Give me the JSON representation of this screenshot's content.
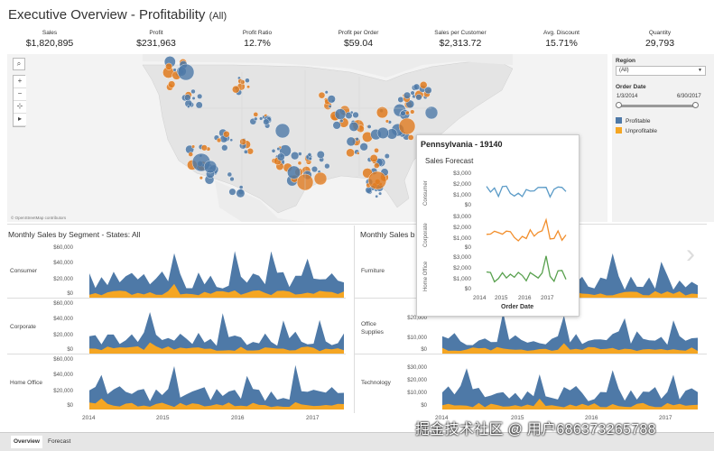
{
  "header": {
    "title": "Executive Overview - Profitability",
    "title_suffix": "(All)"
  },
  "kpis": [
    {
      "label": "Sales",
      "value": "$1,820,895"
    },
    {
      "label": "Profit",
      "value": "$231,963"
    },
    {
      "label": "Profit Ratio",
      "value": "12.7%"
    },
    {
      "label": "Profit per Order",
      "value": "$59.04"
    },
    {
      "label": "Sales per Customer",
      "value": "$2,313.72"
    },
    {
      "label": "Avg. Discount",
      "value": "15.71%"
    },
    {
      "label": "Quantity",
      "value": "29,793"
    }
  ],
  "map": {
    "attribution": "© OpenStreetMap contributors",
    "tools": {
      "search": "⌕",
      "zoom_in": "+",
      "zoom_out": "−",
      "pin": "⊹",
      "play": "▸"
    }
  },
  "filters": {
    "region_label": "Region",
    "region_value": "(All)",
    "order_date_label": "Order Date",
    "date_start": "1/3/2014",
    "date_end": "6/30/2017",
    "legend": [
      {
        "label": "Profitable",
        "color": "#4e79a7"
      },
      {
        "label": "Unprofitable",
        "color": "#f5a623"
      }
    ]
  },
  "left_panel": {
    "title": "Monthly Sales by Segment - States: All",
    "segments": [
      "Consumer",
      "Corporate",
      "Home Office"
    ],
    "yticks": [
      "$60,000",
      "$40,000",
      "$20,000",
      "$0"
    ],
    "xticks": [
      "2014",
      "2015",
      "2016",
      "2017"
    ]
  },
  "right_panel": {
    "title": "Monthly Sales b",
    "categories": [
      "Furniture",
      "Office Supplies",
      "Technology"
    ],
    "yticks": [
      "$30,000",
      "$20,000",
      "$10,000",
      "$0"
    ],
    "xticks": [
      "2014",
      "2015",
      "2016",
      "2017"
    ]
  },
  "tooltip": {
    "title": "Pennsylvania - 19140",
    "subtitle": "Sales Forecast",
    "rows": [
      "Consumer",
      "Corporate",
      "Home Office"
    ],
    "yticks": [
      "$3,000",
      "$2,000",
      "$1,000",
      "$0"
    ],
    "xticks": [
      "2014",
      "2015",
      "2016",
      "2017"
    ],
    "xlabel": "Order Date",
    "colors": [
      "#5b9bc7",
      "#f28e2b",
      "#59a14f"
    ]
  },
  "tabs": [
    {
      "label": "Overview",
      "active": true
    },
    {
      "label": "Forecast",
      "active": false
    }
  ],
  "watermark": "掘金技术社区 @ 用户686373265788",
  "colors": {
    "profitable": "#4e79a7",
    "unprofitable": "#f5a623",
    "map_land": "#e4e4e4"
  }
}
